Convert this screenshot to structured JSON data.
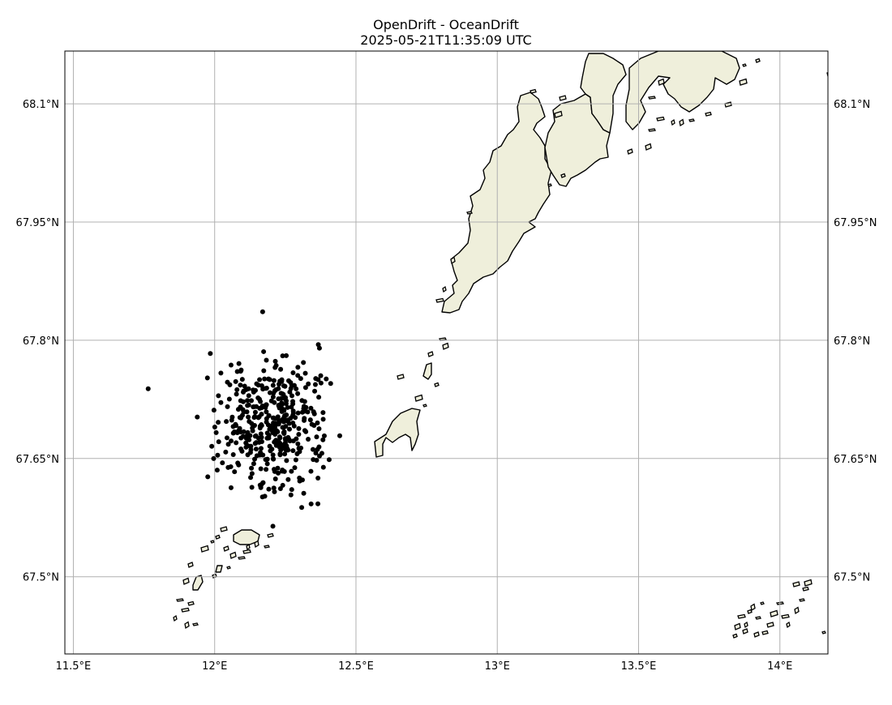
{
  "title": "OpenDrift - OceanDrift",
  "subtitle": "2025-05-21T11:35:09 UTC",
  "map": {
    "lon_range": [
      11.47,
      14.17
    ],
    "lat_range": [
      67.402,
      68.167
    ],
    "lon_ticks": [
      11.5,
      12.0,
      12.5,
      13.0,
      13.5,
      14.0
    ],
    "lon_tick_labels": [
      "11.5°E",
      "12°E",
      "12.5°E",
      "13°E",
      "13.5°E",
      "14°E"
    ],
    "lat_ticks": [
      67.5,
      67.65,
      67.8,
      67.95,
      68.1
    ],
    "lat_tick_labels": [
      "67.5°N",
      "67.65°N",
      "67.8°N",
      "67.95°N",
      "68.1°N"
    ],
    "land_color": "#efefdb",
    "coast_color": "#000000",
    "grid_color": "#b0b0b0",
    "particle_color": "#000000",
    "particles": {
      "count": 420,
      "center_lon": 12.2,
      "center_lat": 67.695,
      "spread_lon_deg": 0.095,
      "spread_lat_deg": 0.042
    }
  }
}
